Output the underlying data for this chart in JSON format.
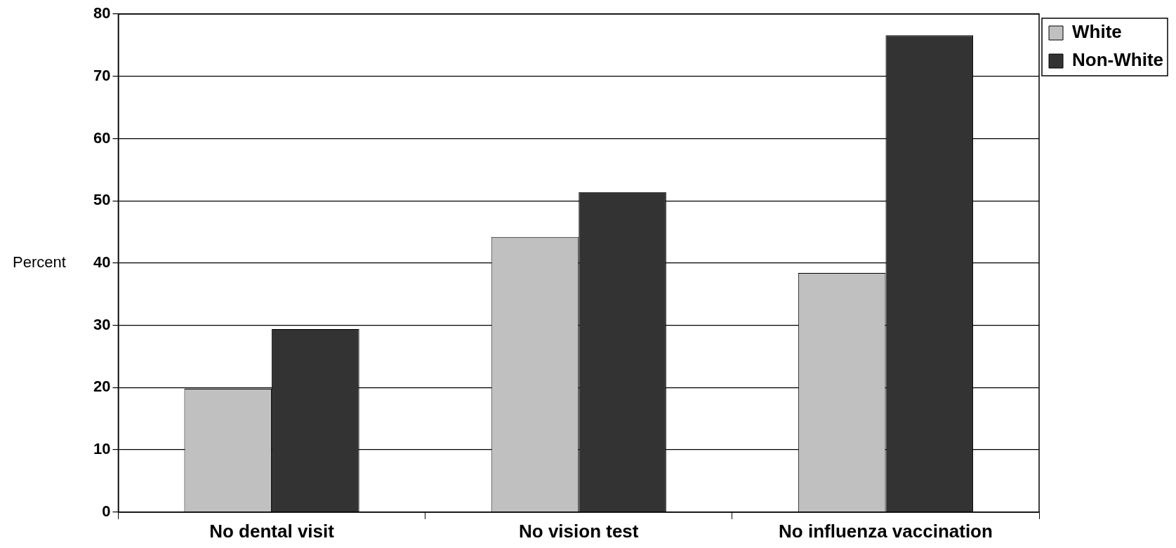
{
  "chart_data": {
    "type": "bar",
    "ylabel": "Percent",
    "categories": [
      "No dental visit",
      "No vision test",
      "No influenza vaccination"
    ],
    "series": [
      {
        "name": "White",
        "color": "#c0c0c0",
        "values": [
          19.8,
          44.2,
          38.4
        ]
      },
      {
        "name": "Non-White",
        "color": "#333333",
        "values": [
          29.4,
          51.4,
          76.6
        ]
      }
    ],
    "ylim": [
      0,
      80
    ],
    "yticks": [
      0,
      10,
      20,
      30,
      40,
      50,
      60,
      70,
      80
    ],
    "grid": "y",
    "legend": "top right"
  }
}
